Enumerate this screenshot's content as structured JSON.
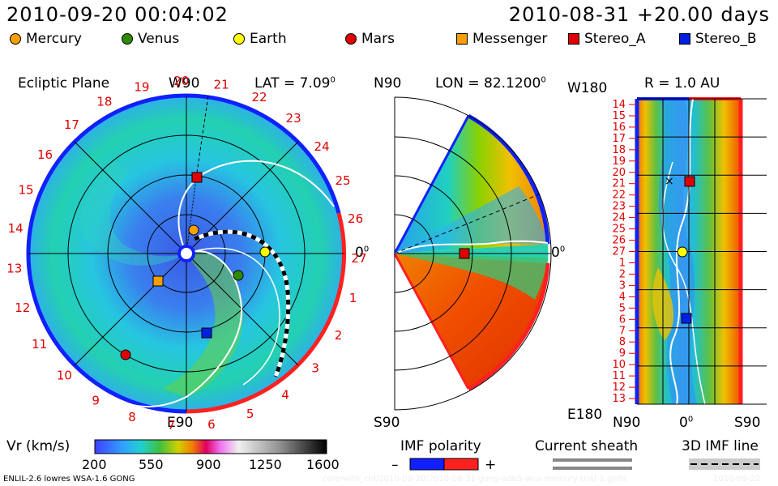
{
  "header": {
    "datetime": "2010-09-20 00:04:02",
    "model_run": "2010-08-31 +20.00 days"
  },
  "legend": [
    {
      "label": "Mercury",
      "shape": "circle",
      "color": "#f5a000"
    },
    {
      "label": "Venus",
      "shape": "circle",
      "color": "#2e8b00"
    },
    {
      "label": "Earth",
      "shape": "circle",
      "color": "#ffff00"
    },
    {
      "label": "Mars",
      "shape": "circle",
      "color": "#e00000"
    },
    {
      "label": "Messenger",
      "shape": "square",
      "color": "#f5a000"
    },
    {
      "label": "Stereo_A",
      "shape": "square",
      "color": "#e00000"
    },
    {
      "label": "Stereo_B",
      "shape": "square",
      "color": "#0020e0"
    }
  ],
  "ecliptic": {
    "title": "Ecliptic Plane",
    "top_label": "W90",
    "bottom_label": "E90",
    "zero_label": "0",
    "lat_label": "LAT = 7.09",
    "lat_sup": "0",
    "carrington_numbers": [
      "19",
      "20",
      "21",
      "22",
      "23",
      "24",
      "25",
      "26",
      "27",
      "1",
      "2",
      "3",
      "4",
      "5",
      "6",
      "7",
      "8",
      "9",
      "10",
      "11",
      "12",
      "13",
      "14",
      "15",
      "16",
      "17",
      "18"
    ]
  },
  "meridional": {
    "top_label": "N90",
    "bottom_label": "S90",
    "zero_label": "0",
    "lon_label": "LON = 82.1200",
    "lon_sup": "0"
  },
  "shell": {
    "w_label": "W180",
    "e_label": "E180",
    "r_label": "R = 1.0 AU",
    "n_label": "N90",
    "mid_label": "0",
    "s_label": "S90",
    "carrington_numbers": [
      "14",
      "15",
      "16",
      "17",
      "18",
      "19",
      "20",
      "21",
      "22",
      "23",
      "24",
      "25",
      "26",
      "27",
      "1",
      "2",
      "3",
      "4",
      "5",
      "6",
      "7",
      "8",
      "9",
      "10",
      "11",
      "12",
      "13"
    ]
  },
  "colorbar": {
    "label": "Vr (km/s)",
    "ticks": [
      "200",
      "550",
      "900",
      "1250",
      "1600"
    ]
  },
  "imf": {
    "label": "IMF polarity",
    "minus": "–",
    "plus": "+"
  },
  "sheath": {
    "label": "Current sheath"
  },
  "imf3d": {
    "label": "3D IMF line"
  },
  "footer": {
    "model": "ENLIL-2.6 lowres WSA-1.6 GONG",
    "path": "core/with_cld/2010-09-20/2010-08-31-gong-adb5-wsa-mercury-trial-1.glsfd",
    "date": "2010-09-22"
  }
}
